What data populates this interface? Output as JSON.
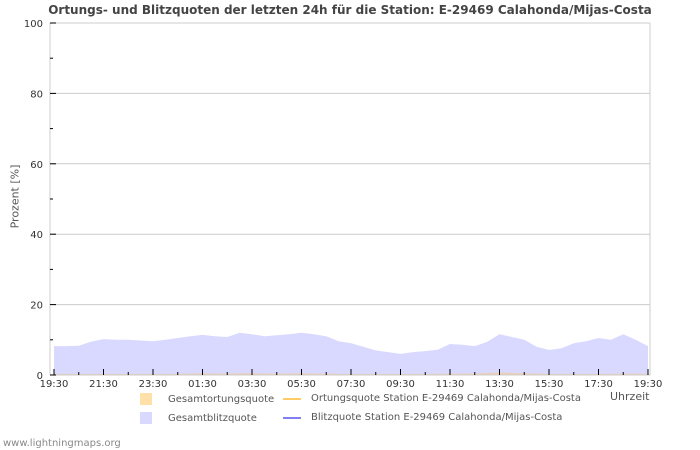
{
  "title": "Ortungs- und Blitzquoten der letzten 24h für die Station: E-29469 Calahonda/Mijas-Costa",
  "ylabel": "Prozent   [%]",
  "xunit": "Uhrzeit",
  "footer": "www.lightningmaps.org",
  "legend": [
    {
      "label": "Gesamtortungsquote",
      "kind": "area",
      "color": "#ffe0a8"
    },
    {
      "label": "Ortungsquote Station E-29469 Calahonda/Mijas-Costa",
      "kind": "line",
      "color": "#ffcc66"
    },
    {
      "label": "Gesamtblitzquote",
      "kind": "area",
      "color": "#d9d9ff"
    },
    {
      "label": "Blitzquote Station E-29469 Calahonda/Mijas-Costa",
      "kind": "line",
      "color": "#8080ee"
    }
  ],
  "chart_data": {
    "type": "area",
    "title": "Ortungs- und Blitzquoten der letzten 24h für die Station: E-29469 Calahonda/Mijas-Costa",
    "xlabel": "Uhrzeit",
    "ylabel": "Prozent [%]",
    "ylim": [
      0,
      100
    ],
    "yticks": [
      0,
      20,
      40,
      60,
      80,
      100
    ],
    "xticks": [
      "19:30",
      "21:30",
      "23:30",
      "01:30",
      "03:30",
      "05:30",
      "07:30",
      "09:30",
      "11:30",
      "13:30",
      "15:30",
      "17:30",
      "19:30"
    ],
    "grid": true,
    "legend_position": "bottom",
    "x": [
      "19:30",
      "20:00",
      "20:30",
      "21:00",
      "21:30",
      "22:00",
      "22:30",
      "23:00",
      "23:30",
      "00:00",
      "00:30",
      "01:00",
      "01:30",
      "02:00",
      "02:30",
      "03:00",
      "03:30",
      "04:00",
      "04:30",
      "05:00",
      "05:30",
      "06:00",
      "06:30",
      "07:00",
      "07:30",
      "08:00",
      "08:30",
      "09:00",
      "09:30",
      "10:00",
      "10:30",
      "11:00",
      "11:30",
      "12:00",
      "12:30",
      "13:00",
      "13:30",
      "14:00",
      "14:30",
      "15:00",
      "15:30",
      "16:00",
      "16:30",
      "17:00",
      "17:30",
      "18:00",
      "18:30",
      "19:00",
      "19:30"
    ],
    "series": [
      {
        "name": "Gesamtblitzquote",
        "values": [
          8.2,
          8.2,
          8.3,
          9.5,
          10.2,
          10.0,
          10.0,
          9.8,
          9.6,
          10.0,
          10.5,
          11.0,
          11.4,
          11.0,
          10.8,
          12.0,
          11.6,
          11.0,
          11.3,
          11.6,
          12.0,
          11.6,
          11.0,
          9.6,
          9.0,
          8.0,
          7.0,
          6.5,
          6.0,
          6.5,
          6.8,
          7.2,
          8.8,
          8.6,
          8.2,
          9.4,
          11.6,
          10.8,
          10.0,
          8.0,
          7.1,
          7.6,
          9.0,
          9.6,
          10.5,
          10.0,
          11.6,
          10.0,
          8.2
        ]
      },
      {
        "name": "Gesamtortungsquote",
        "values": [
          0.3,
          0.3,
          0.3,
          0.3,
          0.3,
          0.3,
          0.3,
          0.3,
          0.3,
          0.3,
          0.3,
          0.4,
          0.5,
          0.4,
          0.4,
          0.5,
          0.5,
          0.4,
          0.4,
          0.4,
          0.5,
          0.4,
          0.4,
          0.3,
          0.3,
          0.3,
          0.3,
          0.3,
          0.3,
          0.3,
          0.3,
          0.3,
          0.4,
          0.4,
          0.4,
          0.6,
          0.7,
          0.6,
          0.5,
          0.4,
          0.3,
          0.3,
          0.3,
          0.3,
          0.3,
          0.3,
          0.4,
          0.4,
          0.3
        ]
      },
      {
        "name": "Ortungsquote Station E-29469 Calahonda/Mijas-Costa",
        "values": []
      },
      {
        "name": "Blitzquote Station E-29469 Calahonda/Mijas-Costa",
        "values": []
      }
    ]
  }
}
